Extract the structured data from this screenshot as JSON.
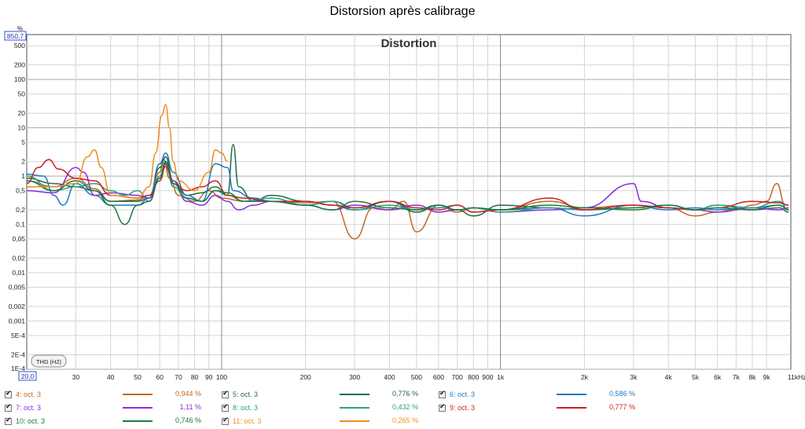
{
  "page": {
    "title": "Distorsion après calibrage"
  },
  "chart_data": {
    "type": "line",
    "title": "Distortion",
    "xscale": "log",
    "yscale": "log",
    "xlim": [
      20,
      11000
    ],
    "ylim": [
      0.0001,
      850.7
    ],
    "ylabel": "%",
    "y_top_value": "850,7",
    "x_start_value": "20,0",
    "grid": true,
    "x_ticks": [
      {
        "v": 30,
        "l": "30"
      },
      {
        "v": 40,
        "l": "40"
      },
      {
        "v": 50,
        "l": "50"
      },
      {
        "v": 60,
        "l": "60"
      },
      {
        "v": 70,
        "l": "70"
      },
      {
        "v": 80,
        "l": "80"
      },
      {
        "v": 90,
        "l": "90"
      },
      {
        "v": 100,
        "l": "100"
      },
      {
        "v": 200,
        "l": "200"
      },
      {
        "v": 300,
        "l": "300"
      },
      {
        "v": 400,
        "l": "400"
      },
      {
        "v": 500,
        "l": "500"
      },
      {
        "v": 600,
        "l": "600"
      },
      {
        "v": 700,
        "l": "700"
      },
      {
        "v": 800,
        "l": "800"
      },
      {
        "v": 900,
        "l": "900"
      },
      {
        "v": 1000,
        "l": "1k"
      },
      {
        "v": 2000,
        "l": "2k"
      },
      {
        "v": 3000,
        "l": "3k"
      },
      {
        "v": 4000,
        "l": "4k"
      },
      {
        "v": 5000,
        "l": "5k"
      },
      {
        "v": 6000,
        "l": "6k"
      },
      {
        "v": 7000,
        "l": "7k"
      },
      {
        "v": 8000,
        "l": "8k"
      },
      {
        "v": 9000,
        "l": "9k"
      },
      {
        "v": 11000,
        "l": "11kHz"
      }
    ],
    "y_ticks": [
      {
        "v": 500,
        "l": "500"
      },
      {
        "v": 200,
        "l": "200"
      },
      {
        "v": 100,
        "l": "100"
      },
      {
        "v": 50,
        "l": "50"
      },
      {
        "v": 20,
        "l": "20"
      },
      {
        "v": 10,
        "l": "10"
      },
      {
        "v": 5,
        "l": "5"
      },
      {
        "v": 2,
        "l": "2"
      },
      {
        "v": 1,
        "l": "1"
      },
      {
        "v": 0.5,
        "l": "0,5"
      },
      {
        "v": 0.2,
        "l": "0,2"
      },
      {
        "v": 0.1,
        "l": "0,1"
      },
      {
        "v": 0.05,
        "l": "0,05"
      },
      {
        "v": 0.02,
        "l": "0,02"
      },
      {
        "v": 0.01,
        "l": "0,01"
      },
      {
        "v": 0.005,
        "l": "0,005"
      },
      {
        "v": 0.002,
        "l": "0,002"
      },
      {
        "v": 0.001,
        "l": "0,001"
      },
      {
        "v": 0.0005,
        "l": "5E-4"
      },
      {
        "v": 0.0002,
        "l": "2E-4"
      },
      {
        "v": 0.0001,
        "l": "1E-4"
      }
    ],
    "badge": "THD (H2)",
    "series": [
      {
        "name": "4: oct. 3",
        "value": "0,944 %",
        "color": "#c06a22",
        "points": [
          [
            20,
            0.8
          ],
          [
            25,
            0.6
          ],
          [
            30,
            0.9
          ],
          [
            35,
            0.55
          ],
          [
            40,
            0.3
          ],
          [
            50,
            0.32
          ],
          [
            55,
            0.4
          ],
          [
            60,
            1.2
          ],
          [
            62,
            2.2
          ],
          [
            65,
            0.9
          ],
          [
            70,
            0.4
          ],
          [
            80,
            0.3
          ],
          [
            90,
            0.5
          ],
          [
            100,
            0.35
          ],
          [
            120,
            0.3
          ],
          [
            150,
            0.3
          ],
          [
            200,
            0.28
          ],
          [
            250,
            0.3
          ],
          [
            300,
            0.05
          ],
          [
            350,
            0.22
          ],
          [
            400,
            0.2
          ],
          [
            450,
            0.3
          ],
          [
            500,
            0.07
          ],
          [
            600,
            0.25
          ],
          [
            700,
            0.18
          ],
          [
            800,
            0.22
          ],
          [
            1000,
            0.2
          ],
          [
            1500,
            0.3
          ],
          [
            2000,
            0.22
          ],
          [
            3000,
            0.25
          ],
          [
            4000,
            0.22
          ],
          [
            5000,
            0.15
          ],
          [
            6000,
            0.18
          ],
          [
            7000,
            0.2
          ],
          [
            8000,
            0.25
          ],
          [
            9000,
            0.3
          ],
          [
            9800,
            0.7
          ],
          [
            10500,
            0.25
          ]
        ]
      },
      {
        "name": "5: oct. 3",
        "value": "0,776 %",
        "color": "#1e6e44",
        "points": [
          [
            20,
            0.9
          ],
          [
            25,
            0.7
          ],
          [
            30,
            0.6
          ],
          [
            35,
            0.5
          ],
          [
            40,
            0.3
          ],
          [
            50,
            0.3
          ],
          [
            55,
            0.35
          ],
          [
            60,
            1.5
          ],
          [
            63,
            2.5
          ],
          [
            67,
            0.8
          ],
          [
            75,
            0.4
          ],
          [
            85,
            0.45
          ],
          [
            95,
            0.6
          ],
          [
            105,
            0.4
          ],
          [
            110,
            4.5
          ],
          [
            115,
            0.6
          ],
          [
            130,
            0.3
          ],
          [
            150,
            0.4
          ],
          [
            200,
            0.3
          ],
          [
            250,
            0.25
          ],
          [
            300,
            0.2
          ],
          [
            400,
            0.3
          ],
          [
            500,
            0.18
          ],
          [
            600,
            0.25
          ],
          [
            700,
            0.2
          ],
          [
            800,
            0.15
          ],
          [
            1000,
            0.25
          ],
          [
            1500,
            0.22
          ],
          [
            2000,
            0.2
          ],
          [
            3000,
            0.22
          ],
          [
            4000,
            0.25
          ],
          [
            5000,
            0.2
          ],
          [
            6000,
            0.25
          ],
          [
            8000,
            0.2
          ],
          [
            10000,
            0.22
          ],
          [
            10800,
            0.18
          ]
        ]
      },
      {
        "name": "6: oct. 3",
        "value": "0,586 %",
        "color": "#1f78c4",
        "points": [
          [
            20,
            1.1
          ],
          [
            23,
            1.0
          ],
          [
            25,
            0.4
          ],
          [
            27,
            0.25
          ],
          [
            30,
            0.7
          ],
          [
            35,
            0.4
          ],
          [
            40,
            0.25
          ],
          [
            50,
            0.25
          ],
          [
            55,
            0.35
          ],
          [
            60,
            1.8
          ],
          [
            63,
            3.0
          ],
          [
            67,
            1.2
          ],
          [
            75,
            0.4
          ],
          [
            85,
            0.3
          ],
          [
            95,
            1.8
          ],
          [
            105,
            1.5
          ],
          [
            110,
            0.5
          ],
          [
            130,
            0.35
          ],
          [
            150,
            0.3
          ],
          [
            200,
            0.25
          ],
          [
            250,
            0.3
          ],
          [
            300,
            0.22
          ],
          [
            400,
            0.3
          ],
          [
            500,
            0.2
          ],
          [
            600,
            0.22
          ],
          [
            700,
            0.25
          ],
          [
            800,
            0.18
          ],
          [
            1000,
            0.2
          ],
          [
            1500,
            0.22
          ],
          [
            2000,
            0.15
          ],
          [
            3000,
            0.25
          ],
          [
            4000,
            0.2
          ],
          [
            5000,
            0.22
          ],
          [
            6000,
            0.2
          ],
          [
            8000,
            0.22
          ],
          [
            10000,
            0.25
          ],
          [
            10800,
            0.2
          ]
        ]
      },
      {
        "name": "7: oct. 3",
        "value": "1,11 %",
        "color": "#8a2be2",
        "points": [
          [
            20,
            0.5
          ],
          [
            25,
            0.45
          ],
          [
            30,
            1.5
          ],
          [
            32,
            1.2
          ],
          [
            35,
            0.4
          ],
          [
            40,
            0.45
          ],
          [
            50,
            0.4
          ],
          [
            55,
            0.35
          ],
          [
            60,
            0.9
          ],
          [
            63,
            1.8
          ],
          [
            67,
            0.8
          ],
          [
            75,
            0.3
          ],
          [
            85,
            0.25
          ],
          [
            95,
            0.4
          ],
          [
            105,
            0.3
          ],
          [
            115,
            0.2
          ],
          [
            130,
            0.25
          ],
          [
            150,
            0.3
          ],
          [
            200,
            0.25
          ],
          [
            250,
            0.2
          ],
          [
            300,
            0.25
          ],
          [
            400,
            0.2
          ],
          [
            500,
            0.25
          ],
          [
            600,
            0.18
          ],
          [
            700,
            0.2
          ],
          [
            800,
            0.22
          ],
          [
            1000,
            0.18
          ],
          [
            1500,
            0.2
          ],
          [
            2000,
            0.22
          ],
          [
            3000,
            0.7
          ],
          [
            3200,
            0.3
          ],
          [
            4000,
            0.22
          ],
          [
            5000,
            0.2
          ],
          [
            6000,
            0.18
          ],
          [
            8000,
            0.22
          ],
          [
            10000,
            0.2
          ],
          [
            10800,
            0.22
          ]
        ]
      },
      {
        "name": "8: oct. 3",
        "value": "0,432 %",
        "color": "#2aa088",
        "points": [
          [
            20,
            1.0
          ],
          [
            25,
            0.5
          ],
          [
            30,
            0.6
          ],
          [
            35,
            0.7
          ],
          [
            40,
            0.5
          ],
          [
            45,
            0.4
          ],
          [
            50,
            0.5
          ],
          [
            55,
            0.3
          ],
          [
            60,
            1.0
          ],
          [
            63,
            2.0
          ],
          [
            67,
            0.6
          ],
          [
            75,
            0.35
          ],
          [
            85,
            0.3
          ],
          [
            95,
            0.5
          ],
          [
            105,
            0.4
          ],
          [
            120,
            0.3
          ],
          [
            150,
            0.35
          ],
          [
            200,
            0.25
          ],
          [
            250,
            0.3
          ],
          [
            300,
            0.2
          ],
          [
            400,
            0.25
          ],
          [
            500,
            0.2
          ],
          [
            600,
            0.25
          ],
          [
            700,
            0.2
          ],
          [
            800,
            0.22
          ],
          [
            1000,
            0.18
          ],
          [
            1500,
            0.22
          ],
          [
            2000,
            0.2
          ],
          [
            3000,
            0.25
          ],
          [
            4000,
            0.22
          ],
          [
            5000,
            0.2
          ],
          [
            6000,
            0.25
          ],
          [
            8000,
            0.22
          ],
          [
            10000,
            0.3
          ],
          [
            10800,
            0.2
          ]
        ]
      },
      {
        "name": "9: oct. 3",
        "value": "0,777 %",
        "color": "#cc1f1f",
        "points": [
          [
            20,
            0.7
          ],
          [
            22,
            1.5
          ],
          [
            24,
            2.2
          ],
          [
            26,
            1.4
          ],
          [
            30,
            0.9
          ],
          [
            35,
            0.8
          ],
          [
            40,
            0.4
          ],
          [
            50,
            0.35
          ],
          [
            55,
            0.4
          ],
          [
            60,
            0.8
          ],
          [
            63,
            1.6
          ],
          [
            67,
            0.7
          ],
          [
            75,
            0.5
          ],
          [
            85,
            0.6
          ],
          [
            95,
            0.8
          ],
          [
            105,
            0.4
          ],
          [
            120,
            0.35
          ],
          [
            150,
            0.3
          ],
          [
            200,
            0.3
          ],
          [
            250,
            0.25
          ],
          [
            300,
            0.22
          ],
          [
            400,
            0.3
          ],
          [
            500,
            0.22
          ],
          [
            600,
            0.2
          ],
          [
            700,
            0.25
          ],
          [
            800,
            0.18
          ],
          [
            1000,
            0.2
          ],
          [
            1500,
            0.35
          ],
          [
            2000,
            0.2
          ],
          [
            3000,
            0.25
          ],
          [
            4000,
            0.22
          ],
          [
            5000,
            0.2
          ],
          [
            6000,
            0.22
          ],
          [
            8000,
            0.3
          ],
          [
            10000,
            0.28
          ],
          [
            10800,
            0.25
          ]
        ]
      },
      {
        "name": "10: oct. 3",
        "value": "0,746 %",
        "color": "#1a7a40",
        "points": [
          [
            20,
            0.8
          ],
          [
            25,
            0.5
          ],
          [
            30,
            0.8
          ],
          [
            35,
            0.5
          ],
          [
            40,
            0.25
          ],
          [
            45,
            0.1
          ],
          [
            50,
            0.25
          ],
          [
            55,
            0.3
          ],
          [
            60,
            0.9
          ],
          [
            63,
            2.0
          ],
          [
            67,
            0.7
          ],
          [
            75,
            0.35
          ],
          [
            85,
            0.3
          ],
          [
            95,
            0.5
          ],
          [
            105,
            0.45
          ],
          [
            120,
            0.3
          ],
          [
            150,
            0.3
          ],
          [
            200,
            0.25
          ],
          [
            250,
            0.2
          ],
          [
            300,
            0.3
          ],
          [
            400,
            0.22
          ],
          [
            500,
            0.2
          ],
          [
            600,
            0.25
          ],
          [
            700,
            0.2
          ],
          [
            800,
            0.22
          ],
          [
            1000,
            0.2
          ],
          [
            1500,
            0.25
          ],
          [
            2000,
            0.22
          ],
          [
            3000,
            0.2
          ],
          [
            4000,
            0.25
          ],
          [
            5000,
            0.2
          ],
          [
            6000,
            0.22
          ],
          [
            8000,
            0.2
          ],
          [
            10000,
            0.25
          ],
          [
            10800,
            0.2
          ]
        ]
      },
      {
        "name": "11: oct. 3",
        "value": "0,265 %",
        "color": "#f08c1e",
        "points": [
          [
            20,
            0.6
          ],
          [
            25,
            0.6
          ],
          [
            30,
            0.7
          ],
          [
            33,
            2.5
          ],
          [
            35,
            3.5
          ],
          [
            37,
            1.5
          ],
          [
            40,
            0.4
          ],
          [
            50,
            0.35
          ],
          [
            55,
            0.6
          ],
          [
            58,
            3.0
          ],
          [
            61,
            18
          ],
          [
            63,
            30
          ],
          [
            65,
            10
          ],
          [
            67,
            2.0
          ],
          [
            70,
            0.8
          ],
          [
            80,
            0.5
          ],
          [
            90,
            1.2
          ],
          [
            95,
            3.5
          ],
          [
            100,
            3.0
          ],
          [
            105,
            2.0
          ]
        ]
      }
    ]
  }
}
